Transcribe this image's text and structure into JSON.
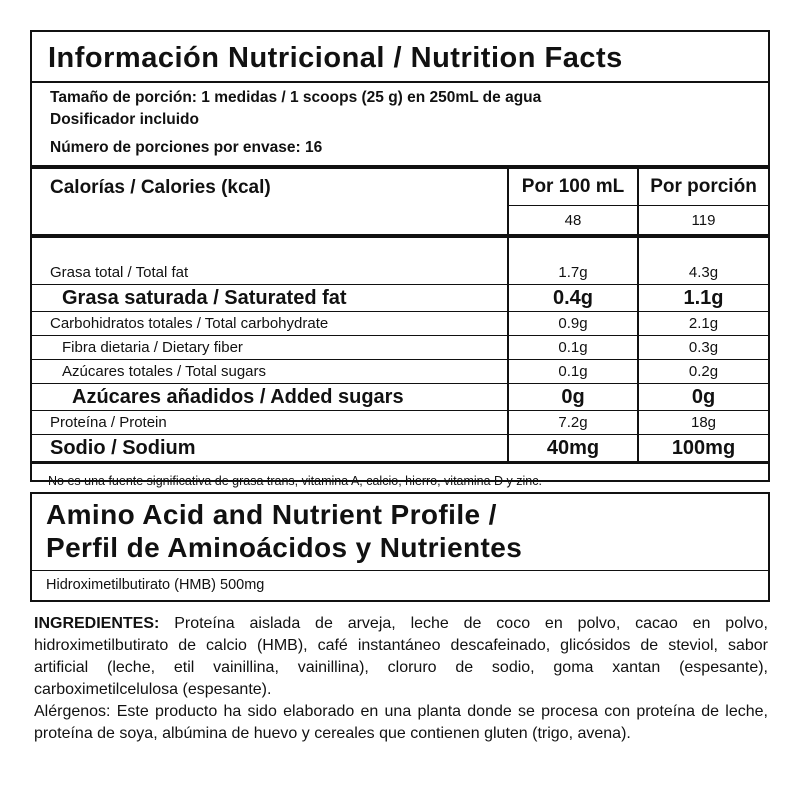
{
  "nutrition_facts": {
    "title": "Información Nutricional / Nutrition Facts",
    "serving_size": "Tamaño de porción: 1 medidas / 1 scoops (25 g) en 250mL de agua",
    "dispenser": "Dosificador incluido",
    "servings_per_container": "Número de porciones por envase: 16",
    "calories_label": "Calorías / Calories (kcal)",
    "columns": [
      "Por 100 mL",
      "Por porción"
    ],
    "calories": [
      "48",
      "119"
    ],
    "rows": [
      [
        "Grasa total / Total fat",
        "1.7g",
        "4.3g"
      ],
      [
        "Grasa saturada / Saturated fat",
        "0.4g",
        "1.1g"
      ],
      [
        "Carbohidratos totales / Total carbohydrate",
        "0.9g",
        "2.1g"
      ],
      [
        "Fibra dietaria / Dietary fiber",
        "0.1g",
        "0.3g"
      ],
      [
        "Azúcares totales / Total sugars",
        "0.1g",
        "0.2g"
      ],
      [
        "Azúcares añadidos / Added sugars",
        "0g",
        "0g"
      ],
      [
        "Proteína / Protein",
        "7.2g",
        "18g"
      ],
      [
        "Sodio / Sodium",
        "40mg",
        "100mg"
      ]
    ],
    "footnote": "No es una fuente significativa de grasa trans, vitamina A, calcio, hierro, vitamina D y zinc."
  },
  "amino_profile": {
    "title": [
      "Amino Acid and Nutrient Profile /",
      "Perfil de Aminoácidos y Nutrientes"
    ],
    "items": [
      "Hidroximetilbutirato (HMB) 500mg"
    ]
  },
  "ingredients": {
    "label": "INGREDIENTES:",
    "text": "Proteína aislada de arveja, leche de coco en polvo, cacao en polvo, hidroximetilbutirato de calcio (HMB), café instantáneo descafeinado, glicósidos de steviol, sabor artificial (leche, etil vainillina, vainillina), cloruro de sodio, goma xantan (espesante), carboximetilcelulosa (espesante).",
    "allergens": "Alérgenos: Este producto ha sido elaborado en una planta donde se procesa con proteína de leche, proteína de soya, albúmina de huevo y cereales que contienen gluten (trigo, avena)."
  }
}
